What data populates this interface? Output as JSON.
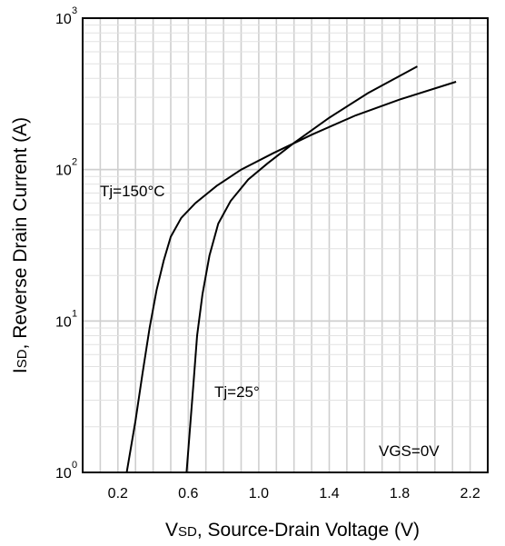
{
  "chart_data": {
    "type": "line",
    "title": "",
    "xlabel_main": "V",
    "xlabel_sub": "SD",
    "xlabel_rest": ", Source-Drain Voltage (V)",
    "ylabel_main": "I",
    "ylabel_sub": "SD",
    "ylabel_rest": ", Reverse Drain Current (A)",
    "xlim": [
      0.0,
      2.3
    ],
    "ylim": [
      1,
      1000
    ],
    "yscale": "log",
    "x_ticks": [
      0.2,
      0.6,
      1.0,
      1.4,
      1.8,
      2.2
    ],
    "x_tick_labels": [
      "0.2",
      "0.6",
      "1.0",
      "1.4",
      "1.8",
      "2.2"
    ],
    "y_ticks": [
      1,
      10,
      100,
      1000
    ],
    "y_tick_labels": [
      {
        "base": "10",
        "exp": "0"
      },
      {
        "base": "10",
        "exp": "1"
      },
      {
        "base": "10",
        "exp": "2"
      },
      {
        "base": "10",
        "exp": "3"
      }
    ],
    "grid": true,
    "series": [
      {
        "name": "Tj=150°C",
        "x": [
          0.25,
          0.3,
          0.34,
          0.38,
          0.42,
          0.46,
          0.5,
          0.56,
          0.64,
          0.76,
          0.9,
          1.08,
          1.3,
          1.55,
          1.8,
          2.12
        ],
        "y": [
          1.0,
          2.2,
          4.5,
          9.0,
          16,
          25,
          36,
          48,
          60,
          78,
          100,
          128,
          170,
          228,
          290,
          380
        ]
      },
      {
        "name": "Tj=25°",
        "x": [
          0.59,
          0.61,
          0.63,
          0.65,
          0.68,
          0.72,
          0.77,
          0.84,
          0.94,
          1.05,
          1.2,
          1.4,
          1.62,
          1.9
        ],
        "y": [
          1.0,
          2.0,
          4.0,
          8.0,
          15,
          27,
          44,
          62,
          86,
          110,
          150,
          220,
          320,
          480
        ]
      }
    ],
    "annotations": [
      "VGS=0V"
    ]
  }
}
